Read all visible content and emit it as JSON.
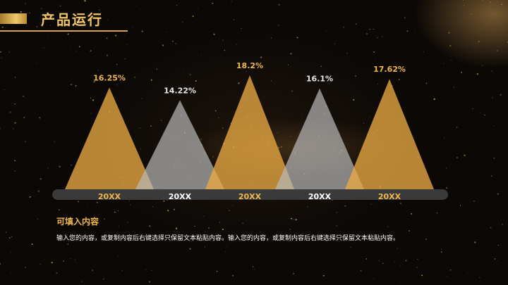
{
  "header": {
    "title": "产品运行"
  },
  "colors": {
    "gold": "#e8a943",
    "gray": "#b9b9b9",
    "gold_label": "#f0b64b",
    "gray_label": "#e6e6e6",
    "bar": "#3a3a3a"
  },
  "chart_data": {
    "type": "bar",
    "style": "triangle",
    "categories": [
      "20XX",
      "20XX",
      "20XX",
      "20XX",
      "20XX"
    ],
    "values": [
      16.25,
      14.22,
      18.2,
      16.1,
      17.62
    ],
    "labels": [
      "16.25%",
      "14.22%",
      "18.2%",
      "16.1%",
      "17.62%"
    ],
    "series_colors": [
      "gold",
      "gray",
      "gold",
      "gray",
      "gold"
    ],
    "title": "",
    "xlabel": "",
    "ylabel": "",
    "ylim": [
      0,
      18.2
    ],
    "grid": false,
    "legend": "none"
  },
  "caption": {
    "heading": "可填入内容",
    "body": "输入您的内容，或复制内容后右键选择只保留文本粘贴内容。输入您的内容，或复制内容后右键选择只保留文本粘贴内容。"
  }
}
